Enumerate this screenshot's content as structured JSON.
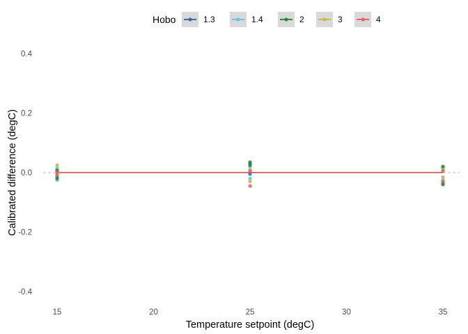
{
  "chart_data": {
    "type": "scatter",
    "xlabel": "Temperature setpoint (degC)",
    "ylabel": "Calibrated difference (degC)",
    "xlim": [
      15,
      35
    ],
    "ylim": [
      -0.4,
      0.4
    ],
    "x_ticks": [
      15,
      20,
      25,
      30,
      35
    ],
    "y_ticks": [
      -0.4,
      -0.2,
      0.0,
      0.2,
      0.4
    ],
    "grid": false,
    "legend": {
      "title": "Hobo",
      "position": "top",
      "entries": [
        "1.3",
        "1.4",
        "2",
        "3",
        "4"
      ]
    },
    "reference_line": {
      "y": 0.0,
      "style": "dashed",
      "color": "#bbbbbb"
    },
    "series": [
      {
        "name": "1.3",
        "color": "#3a6ea5",
        "points": [
          [
            15,
            0.005
          ],
          [
            15,
            -0.015
          ],
          [
            25,
            0.03
          ],
          [
            25,
            -0.005
          ],
          [
            35,
            0.015
          ],
          [
            35,
            -0.035
          ]
        ],
        "fit_line": [
          [
            15,
            0.0
          ],
          [
            35,
            0.0
          ]
        ]
      },
      {
        "name": "1.4",
        "color": "#5bc8e8",
        "points": [
          [
            15,
            0.015
          ],
          [
            15,
            -0.025
          ],
          [
            25,
            0.02
          ],
          [
            25,
            -0.02
          ],
          [
            35,
            0.02
          ],
          [
            35,
            -0.025
          ]
        ],
        "fit_line": [
          [
            15,
            0.0
          ],
          [
            35,
            0.0
          ]
        ]
      },
      {
        "name": "2",
        "color": "#2a8b3c",
        "points": [
          [
            15,
            0.008
          ],
          [
            15,
            -0.02
          ],
          [
            25,
            0.035
          ],
          [
            25,
            0.025
          ],
          [
            35,
            0.02
          ],
          [
            35,
            -0.04
          ]
        ],
        "fit_line": [
          [
            15,
            0.0
          ],
          [
            35,
            0.0
          ]
        ]
      },
      {
        "name": "3",
        "color": "#c9b84a",
        "points": [
          [
            15,
            0.025
          ],
          [
            15,
            -0.005
          ],
          [
            25,
            0.01
          ],
          [
            25,
            -0.03
          ],
          [
            35,
            0.01
          ],
          [
            35,
            -0.015
          ]
        ],
        "fit_line": [
          [
            15,
            0.0
          ],
          [
            35,
            0.0
          ]
        ]
      },
      {
        "name": "4",
        "color": "#e8616a",
        "points": [
          [
            15,
            0.0
          ],
          [
            15,
            -0.008
          ],
          [
            25,
            0.005
          ],
          [
            25,
            -0.045
          ],
          [
            35,
            0.005
          ],
          [
            35,
            -0.03
          ]
        ],
        "fit_line": [
          [
            15,
            0.0
          ],
          [
            35,
            0.0
          ]
        ]
      }
    ]
  }
}
